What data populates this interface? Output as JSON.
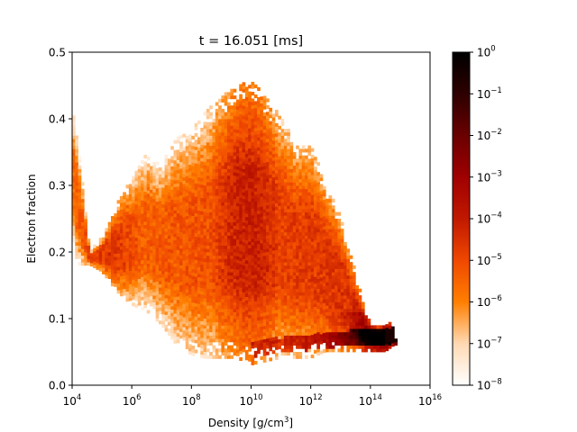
{
  "chart_data": {
    "type": "heatmap",
    "title": "t = 16.051 [ms]",
    "xlabel": "Density [g/cm",
    "xlabel_sup": "3",
    "xlabel_end": "]",
    "ylabel": "Electron fraction",
    "x_scale": "log",
    "x_range": [
      10000,
      10000000000000000
    ],
    "x_ticks": [
      {
        "exp": 4,
        "label_base": "10",
        "label_exp": "4"
      },
      {
        "exp": 6,
        "label_base": "10",
        "label_exp": "6"
      },
      {
        "exp": 8,
        "label_base": "10",
        "label_exp": "8"
      },
      {
        "exp": 10,
        "label_base": "10",
        "label_exp": "10"
      },
      {
        "exp": 12,
        "label_base": "10",
        "label_exp": "12"
      },
      {
        "exp": 14,
        "label_base": "10",
        "label_exp": "14"
      },
      {
        "exp": 16,
        "label_base": "10",
        "label_exp": "16"
      }
    ],
    "y_range": [
      0.0,
      0.5
    ],
    "y_ticks": [
      {
        "value": 0.0,
        "label": "0.0"
      },
      {
        "value": 0.1,
        "label": "0.1"
      },
      {
        "value": 0.2,
        "label": "0.2"
      },
      {
        "value": 0.3,
        "label": "0.3"
      },
      {
        "value": 0.4,
        "label": "0.4"
      },
      {
        "value": 0.5,
        "label": "0.5"
      }
    ],
    "colorbar": {
      "scale": "log",
      "range": [
        1e-08,
        1
      ],
      "colormap": "gist_heat_r",
      "ticks": [
        {
          "exp": 0,
          "label_base": "10",
          "label_exp": "0"
        },
        {
          "exp": -1,
          "label_base": "10",
          "label_exp": "−1"
        },
        {
          "exp": -2,
          "label_base": "10",
          "label_exp": "−2"
        },
        {
          "exp": -3,
          "label_base": "10",
          "label_exp": "−3"
        },
        {
          "exp": -4,
          "label_base": "10",
          "label_exp": "−4"
        },
        {
          "exp": -5,
          "label_base": "10",
          "label_exp": "−5"
        },
        {
          "exp": -6,
          "label_base": "10",
          "label_exp": "−6"
        },
        {
          "exp": -7,
          "label_base": "10",
          "label_exp": "−7"
        },
        {
          "exp": -8,
          "label_base": "10",
          "label_exp": "−8"
        }
      ]
    },
    "distribution": {
      "upper_envelope": [
        [
          4.0,
          0.41
        ],
        [
          4.1,
          0.4
        ],
        [
          4.6,
          0.2
        ],
        [
          5.0,
          0.22
        ],
        [
          5.5,
          0.27
        ],
        [
          6.0,
          0.31
        ],
        [
          6.5,
          0.35
        ],
        [
          7.0,
          0.33
        ],
        [
          7.5,
          0.37
        ],
        [
          8.0,
          0.38
        ],
        [
          8.5,
          0.41
        ],
        [
          9.0,
          0.43
        ],
        [
          9.5,
          0.45
        ],
        [
          10.0,
          0.455
        ],
        [
          10.5,
          0.43
        ],
        [
          11.0,
          0.4
        ],
        [
          11.5,
          0.36
        ],
        [
          12.0,
          0.36
        ],
        [
          12.5,
          0.3
        ],
        [
          13.0,
          0.25
        ],
        [
          13.3,
          0.2
        ],
        [
          13.6,
          0.15
        ],
        [
          13.9,
          0.1
        ],
        [
          14.2,
          0.085
        ],
        [
          14.5,
          0.09
        ],
        [
          14.8,
          0.09
        ],
        [
          14.8,
          0.07
        ]
      ],
      "lower_envelope": [
        [
          4.0,
          0.24
        ],
        [
          4.1,
          0.18
        ],
        [
          4.6,
          0.18
        ],
        [
          5.0,
          0.17
        ],
        [
          5.5,
          0.14
        ],
        [
          6.0,
          0.12
        ],
        [
          6.5,
          0.11
        ],
        [
          7.0,
          0.09
        ],
        [
          7.5,
          0.06
        ],
        [
          8.0,
          0.045
        ],
        [
          8.5,
          0.04
        ],
        [
          9.0,
          0.04
        ],
        [
          9.5,
          0.04
        ],
        [
          10.0,
          0.03
        ],
        [
          10.5,
          0.035
        ],
        [
          11.0,
          0.04
        ],
        [
          11.5,
          0.04
        ],
        [
          12.0,
          0.04
        ],
        [
          12.5,
          0.05
        ],
        [
          13.0,
          0.05
        ],
        [
          13.5,
          0.05
        ],
        [
          14.0,
          0.05
        ],
        [
          14.5,
          0.05
        ],
        [
          14.8,
          0.06
        ]
      ],
      "high_density_ridge": [
        [
          10.0,
          0.055
        ],
        [
          11.0,
          0.06
        ],
        [
          12.0,
          0.065
        ],
        [
          13.0,
          0.07
        ],
        [
          14.0,
          0.072
        ],
        [
          14.8,
          0.075
        ]
      ],
      "peak_density_bin": [
        14.7,
        0.075
      ]
    }
  }
}
